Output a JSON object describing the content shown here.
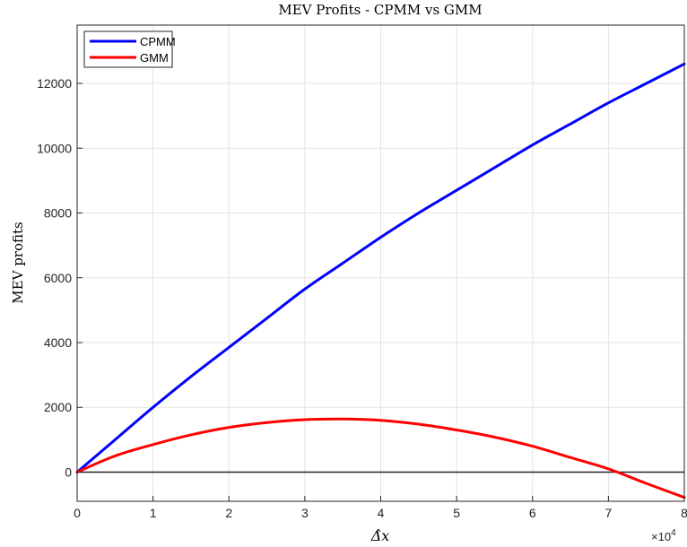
{
  "chart_data": {
    "type": "line",
    "title": "MEV Profits - CPMM vs GMM",
    "xlabel": "Δ̂x",
    "ylabel": "MEV profits",
    "x_multiplier": "×10",
    "x_multiplier_exp": "4",
    "xlim": [
      0,
      8
    ],
    "ylim": [
      -900,
      13800
    ],
    "xticks": [
      0,
      1,
      2,
      3,
      4,
      5,
      6,
      7,
      8
    ],
    "yticks": [
      0,
      2000,
      4000,
      6000,
      8000,
      10000,
      12000
    ],
    "grid": true,
    "legend_position": "top-left",
    "zero_line": true,
    "x": [
      0,
      0.5,
      1,
      1.5,
      2,
      2.5,
      3,
      3.5,
      4,
      4.5,
      5,
      5.5,
      6,
      6.5,
      7,
      7.5,
      8
    ],
    "series": [
      {
        "name": "CPMM",
        "color": "#0000ff",
        "values": [
          0,
          1000,
          2000,
          2950,
          3850,
          4750,
          5650,
          6450,
          7250,
          8000,
          8700,
          9400,
          10100,
          10750,
          11400,
          12000,
          12600
        ]
      },
      {
        "name": "GMM",
        "color": "#ff0000",
        "values": [
          0,
          500,
          850,
          1150,
          1380,
          1530,
          1620,
          1640,
          1600,
          1480,
          1300,
          1080,
          800,
          450,
          100,
          -350,
          -780
        ]
      }
    ]
  }
}
